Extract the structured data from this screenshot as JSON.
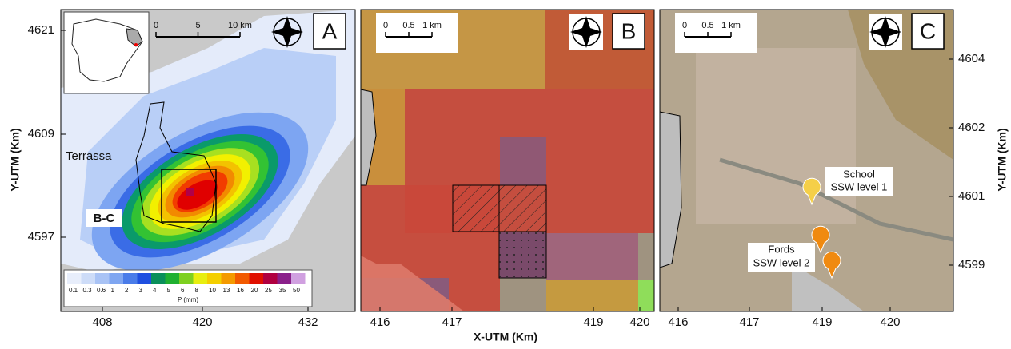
{
  "axis_labels": {
    "x": "X-UTM (Km)",
    "y_left": "Y-UTM (Km)",
    "y_right": "Y-UTM (Km)"
  },
  "panels": [
    {
      "letter": "A",
      "xticks": [
        408,
        420,
        432
      ],
      "yticks": [
        4621,
        4609,
        4597
      ],
      "scalebar": [
        "0",
        "5",
        "10 km"
      ],
      "labels": [
        "Terrassa",
        "B-C"
      ],
      "colorbar": {
        "ticks": [
          0.1,
          0.3,
          0.6,
          1,
          2,
          3,
          4,
          5,
          6,
          8,
          10,
          13,
          16,
          20,
          25,
          35,
          50
        ],
        "title": "P (mm)"
      }
    },
    {
      "letter": "B",
      "xticks": [
        416,
        417,
        419,
        420
      ],
      "scalebar": [
        "0",
        "0.5",
        "1 km"
      ]
    },
    {
      "letter": "C",
      "xticks": [
        416,
        417,
        419,
        420
      ],
      "yticks": [
        4604,
        4602,
        4601,
        4599
      ],
      "scalebar": [
        "0",
        "0.5",
        "1 km"
      ],
      "labels": [
        "School",
        "SSW level 1",
        "Fords",
        "SSW level 2"
      ]
    }
  ]
}
